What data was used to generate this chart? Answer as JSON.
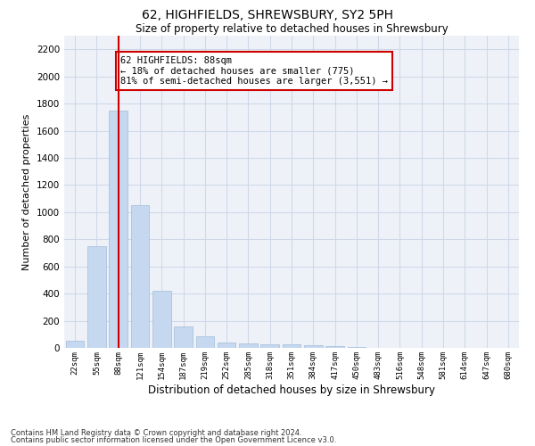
{
  "title": "62, HIGHFIELDS, SHREWSBURY, SY2 5PH",
  "subtitle": "Size of property relative to detached houses in Shrewsbury",
  "xlabel": "Distribution of detached houses by size in Shrewsbury",
  "ylabel": "Number of detached properties",
  "categories": [
    "22sqm",
    "55sqm",
    "88sqm",
    "121sqm",
    "154sqm",
    "187sqm",
    "219sqm",
    "252sqm",
    "285sqm",
    "318sqm",
    "351sqm",
    "384sqm",
    "417sqm",
    "450sqm",
    "483sqm",
    "516sqm",
    "548sqm",
    "581sqm",
    "614sqm",
    "647sqm",
    "680sqm"
  ],
  "values": [
    50,
    750,
    1750,
    1050,
    420,
    160,
    85,
    40,
    35,
    25,
    25,
    20,
    15,
    5,
    3,
    2,
    1,
    1,
    1,
    0,
    0
  ],
  "bar_color": "#c5d8f0",
  "bar_edgecolor": "#a0bcd8",
  "highlight_index": 2,
  "annotation_text": "62 HIGHFIELDS: 88sqm\n← 18% of detached houses are smaller (775)\n81% of semi-detached houses are larger (3,551) →",
  "annotation_box_color": "#ffffff",
  "annotation_box_edgecolor": "#cc0000",
  "ylim": [
    0,
    2300
  ],
  "yticks": [
    0,
    200,
    400,
    600,
    800,
    1000,
    1200,
    1400,
    1600,
    1800,
    2000,
    2200
  ],
  "grid_color": "#d0d8e8",
  "bg_color": "#eef2f8",
  "fig_bg_color": "#ffffff",
  "footer1": "Contains HM Land Registry data © Crown copyright and database right 2024.",
  "footer2": "Contains public sector information licensed under the Open Government Licence v3.0."
}
